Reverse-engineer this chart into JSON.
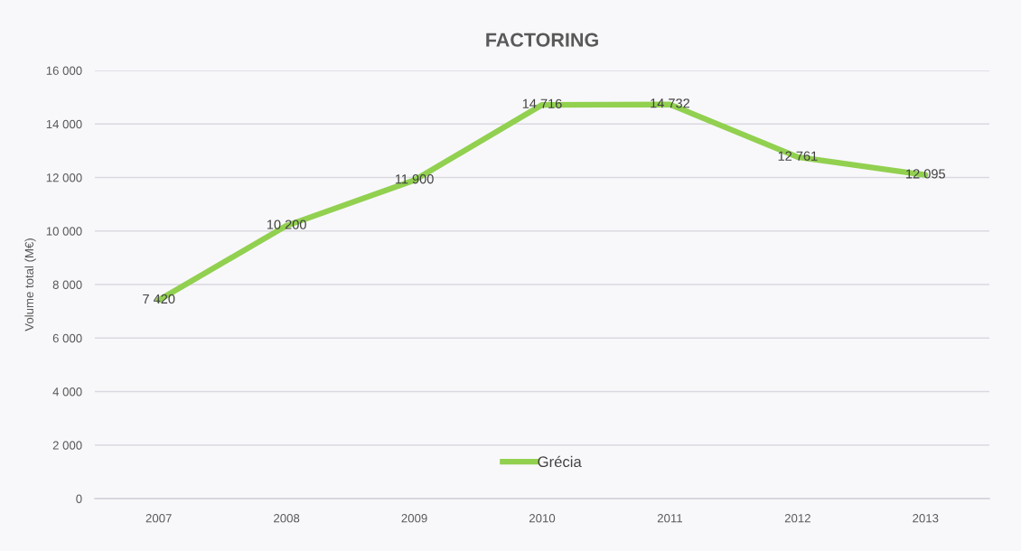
{
  "chart_data": {
    "type": "line",
    "title": "FACTORING",
    "ylabel": "Volume total (M€)",
    "categories": [
      "2007",
      "2008",
      "2009",
      "2010",
      "2011",
      "2012",
      "2013"
    ],
    "series": [
      {
        "name": "Grécia",
        "color": "#92d050",
        "values": [
          7420,
          10200,
          11900,
          14716,
          14732,
          12761,
          12095
        ],
        "value_labels": [
          "7 420",
          "10 200",
          "11 900",
          "14 716",
          "14 732",
          "12 761",
          "12 095"
        ]
      }
    ],
    "ylim": [
      0,
      16000
    ],
    "yticks": [
      {
        "value": 0,
        "label": "0"
      },
      {
        "value": 2000,
        "label": "2 000"
      },
      {
        "value": 4000,
        "label": "4 000"
      },
      {
        "value": 6000,
        "label": "6 000"
      },
      {
        "value": 8000,
        "label": "8 000"
      },
      {
        "value": 10000,
        "label": "10 000"
      },
      {
        "value": 12000,
        "label": "12 000"
      },
      {
        "value": 14000,
        "label": "14 000"
      },
      {
        "value": 16000,
        "label": "16 000"
      }
    ],
    "grid": "y",
    "legend": "bottom",
    "marker": "none",
    "line_style": "solid"
  }
}
